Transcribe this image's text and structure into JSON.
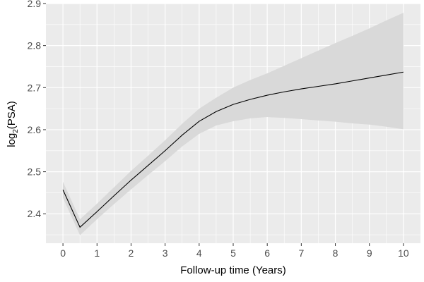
{
  "chart_data": {
    "type": "line",
    "title": "",
    "xlabel": "Follow-up time (Years)",
    "ylabel_main": "log",
    "ylabel_sub": "2",
    "ylabel_rest": "(PSA)",
    "xlim": [
      -0.5,
      10.5
    ],
    "ylim": [
      2.33,
      2.9
    ],
    "x_ticks": [
      0,
      1,
      2,
      3,
      4,
      5,
      6,
      7,
      8,
      9,
      10
    ],
    "y_ticks": [
      2.4,
      2.5,
      2.6,
      2.7,
      2.8,
      2.9
    ],
    "y_tick_labels": [
      "2.4",
      "2.5",
      "2.6",
      "2.7",
      "2.8",
      "2.9"
    ],
    "grid": true,
    "colors": {
      "panel": "#ebebeb",
      "grid": "#ffffff",
      "ribbon": "#d9d9d9",
      "line": "#000000"
    },
    "series": [
      {
        "x": [
          0,
          0.5,
          1,
          1.5,
          2,
          2.5,
          3,
          3.5,
          4,
          4.5,
          5,
          5.5,
          6,
          6.5,
          7,
          7.5,
          8,
          8.5,
          9,
          9.5,
          10
        ],
        "y": [
          2.457,
          2.368,
          2.405,
          2.443,
          2.48,
          2.515,
          2.55,
          2.587,
          2.62,
          2.643,
          2.66,
          2.672,
          2.682,
          2.69,
          2.697,
          2.703,
          2.709,
          2.716,
          2.723,
          2.73,
          2.737
        ],
        "lower": [
          2.438,
          2.349,
          2.387,
          2.423,
          2.458,
          2.492,
          2.525,
          2.56,
          2.59,
          2.61,
          2.62,
          2.627,
          2.63,
          2.628,
          2.625,
          2.622,
          2.619,
          2.615,
          2.612,
          2.607,
          2.601
        ],
        "upper": [
          2.476,
          2.387,
          2.424,
          2.463,
          2.502,
          2.538,
          2.575,
          2.614,
          2.65,
          2.676,
          2.7,
          2.718,
          2.734,
          2.752,
          2.77,
          2.788,
          2.806,
          2.823,
          2.841,
          2.86,
          2.878
        ]
      }
    ]
  }
}
